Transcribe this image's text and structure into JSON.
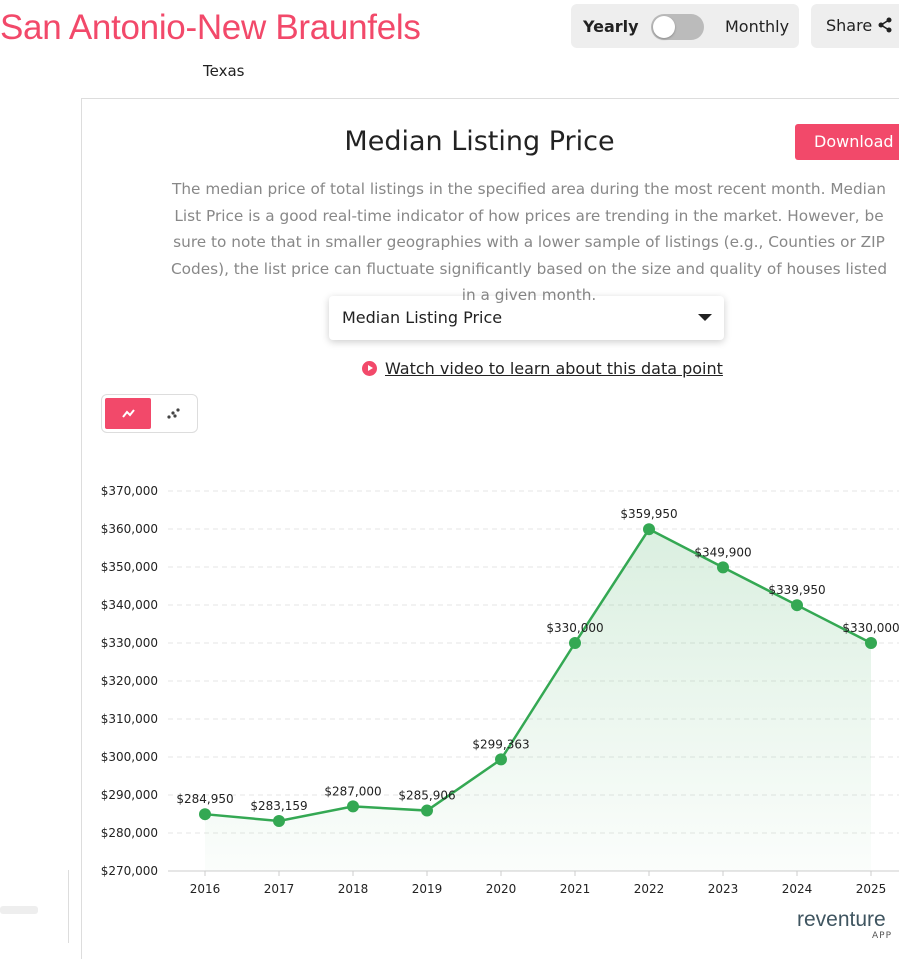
{
  "header": {
    "title": "San Antonio-New Braunfels",
    "subtitle": "Texas",
    "toggle_left": "Yearly",
    "toggle_right": "Monthly",
    "toggle_state": "Yearly",
    "share_label": "Share"
  },
  "card": {
    "title": "Median Listing Price",
    "download_label": "Download Data",
    "description": "The median price of total listings in the specified area during the most recent month. Median List Price is a good real-time indicator of how prices are trending in the market. However, be sure to note that in smaller geographies with a lower sample of listings (e.g., Counties or ZIP Codes), the list price can fluctuate significantly based on the size and quality of houses listed in a given month.",
    "select_value": "Median Listing Price",
    "video_link": "Watch video to learn about this data point",
    "chart_types": [
      "line-chart-icon",
      "scatter-chart-icon"
    ],
    "active_chart_type": "line"
  },
  "brand": {
    "logo": "reventure",
    "logo_sub": "APP"
  },
  "colors": {
    "accent": "#f2496a",
    "series": "#34a853"
  },
  "chart_data": {
    "type": "area",
    "categories": [
      "2016",
      "2017",
      "2018",
      "2019",
      "2020",
      "2021",
      "2022",
      "2023",
      "2024",
      "2025"
    ],
    "values": [
      284950,
      283159,
      287000,
      285906,
      299363,
      330000,
      359950,
      349900,
      339950,
      330000
    ],
    "data_labels": [
      "$284,950",
      "$283,159",
      "$287,000",
      "$285,906",
      "$299,363",
      "$330,000",
      "$359,950",
      "$349,900",
      "$339,950",
      "$330,000"
    ],
    "ylim": [
      270000,
      370000
    ],
    "yticks": [
      "$270,000",
      "$280,000",
      "$290,000",
      "$300,000",
      "$310,000",
      "$320,000",
      "$330,000",
      "$340,000",
      "$350,000",
      "$360,000",
      "$370,000"
    ],
    "grid": true,
    "legend": "none"
  }
}
